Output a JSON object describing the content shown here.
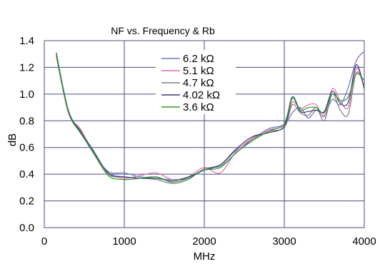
{
  "chart_data": {
    "type": "line",
    "title": "NF vs. Frequency & Rb",
    "xlabel": "MHz",
    "ylabel": "dB",
    "xlim": [
      0,
      4000
    ],
    "ylim": [
      0.0,
      1.4
    ],
    "xticks": [
      0,
      1000,
      2000,
      3000,
      4000
    ],
    "yticks": [
      0.0,
      0.2,
      0.4,
      0.6,
      0.8,
      1.0,
      1.2,
      1.4
    ],
    "xtick_labels": [
      "0",
      "1000",
      "2000",
      "3000",
      "4000"
    ],
    "ytick_labels": [
      "0.0",
      "0.2",
      "0.4",
      "0.6",
      "0.8",
      "1.0",
      "1.2",
      "1.4"
    ],
    "grid": true,
    "legend_position": "top-center",
    "series": [
      {
        "name": "6.2 kΩ",
        "color": "#7070c8",
        "x": [
          150,
          300,
          450,
          600,
          800,
          1000,
          1200,
          1400,
          1600,
          1800,
          2000,
          2200,
          2400,
          2600,
          2800,
          3000,
          3100,
          3200,
          3300,
          3400,
          3500,
          3600,
          3700,
          3800,
          3900,
          4000
        ],
        "y": [
          1.3,
          0.88,
          0.72,
          0.57,
          0.42,
          0.41,
          0.38,
          0.37,
          0.36,
          0.37,
          0.44,
          0.47,
          0.58,
          0.66,
          0.74,
          0.77,
          0.86,
          0.9,
          0.82,
          0.88,
          0.84,
          0.96,
          0.92,
          1.05,
          1.25,
          1.32
        ]
      },
      {
        "name": "5.1 kΩ",
        "color": "#e070a8",
        "x": [
          150,
          300,
          450,
          600,
          800,
          1000,
          1200,
          1400,
          1600,
          1800,
          2000,
          2200,
          2400,
          2600,
          2800,
          3000,
          3100,
          3200,
          3300,
          3400,
          3500,
          3600,
          3700,
          3800,
          3900,
          4000
        ],
        "y": [
          1.29,
          0.86,
          0.74,
          0.58,
          0.41,
          0.37,
          0.39,
          0.41,
          0.36,
          0.38,
          0.45,
          0.41,
          0.57,
          0.67,
          0.73,
          0.77,
          0.94,
          0.89,
          0.92,
          0.92,
          0.83,
          1.04,
          0.95,
          0.9,
          1.19,
          1.05
        ]
      },
      {
        "name": "4.7 kΩ",
        "color": "#808080",
        "x": [
          150,
          300,
          450,
          600,
          800,
          1000,
          1200,
          1400,
          1600,
          1800,
          2000,
          2200,
          2400,
          2600,
          2800,
          3000,
          3100,
          3200,
          3300,
          3400,
          3500,
          3600,
          3700,
          3800,
          3900,
          4000
        ],
        "y": [
          1.28,
          0.87,
          0.73,
          0.57,
          0.4,
          0.38,
          0.37,
          0.36,
          0.33,
          0.36,
          0.44,
          0.46,
          0.56,
          0.66,
          0.72,
          0.75,
          0.92,
          0.86,
          0.84,
          0.9,
          0.8,
          1.0,
          0.88,
          0.85,
          1.16,
          1.06
        ]
      },
      {
        "name": "4.02 kΩ",
        "color": "#3c3c78",
        "x": [
          150,
          300,
          450,
          600,
          800,
          1000,
          1200,
          1400,
          1600,
          1800,
          2000,
          2200,
          2400,
          2600,
          2800,
          3000,
          3100,
          3200,
          3300,
          3400,
          3500,
          3600,
          3700,
          3800,
          3900,
          4000
        ],
        "y": [
          1.31,
          0.88,
          0.72,
          0.59,
          0.41,
          0.38,
          0.37,
          0.37,
          0.35,
          0.38,
          0.43,
          0.47,
          0.59,
          0.68,
          0.71,
          0.76,
          0.97,
          0.87,
          0.87,
          0.88,
          0.87,
          1.02,
          0.93,
          0.94,
          1.22,
          1.04
        ]
      },
      {
        "name": "3.6 kΩ",
        "color": "#2e9a2e",
        "x": [
          150,
          300,
          450,
          600,
          800,
          1000,
          1200,
          1400,
          1600,
          1800,
          2000,
          2200,
          2400,
          2600,
          2800,
          3000,
          3100,
          3200,
          3300,
          3400,
          3500,
          3600,
          3700,
          3800,
          3900,
          4000
        ],
        "y": [
          1.3,
          0.87,
          0.71,
          0.58,
          0.39,
          0.36,
          0.37,
          0.38,
          0.34,
          0.37,
          0.43,
          0.45,
          0.56,
          0.65,
          0.72,
          0.78,
          0.98,
          0.88,
          0.9,
          0.9,
          0.86,
          1.0,
          0.95,
          0.98,
          1.15,
          1.1
        ]
      }
    ]
  }
}
